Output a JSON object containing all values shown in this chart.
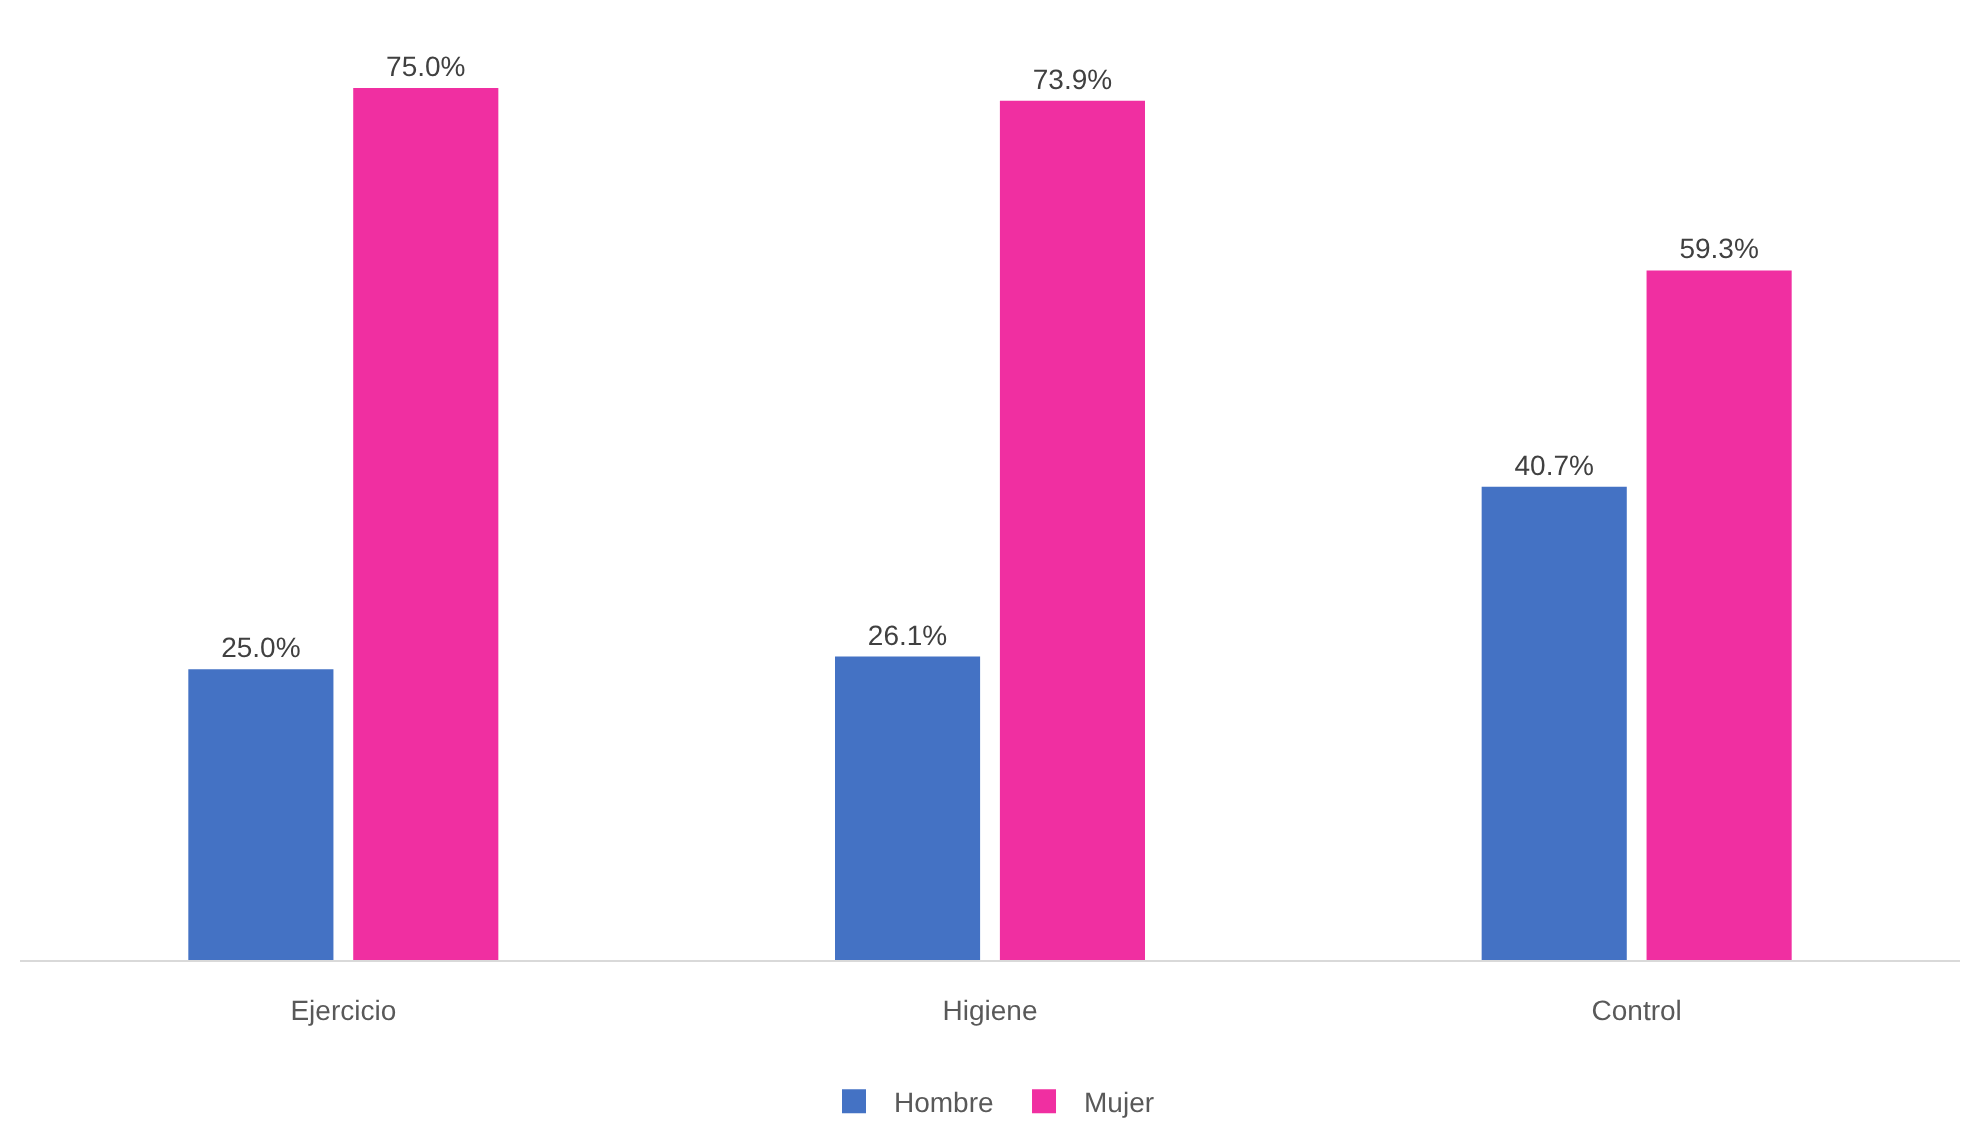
{
  "chart_data": {
    "type": "bar",
    "categories": [
      "Ejercicio",
      "Higiene",
      "Control"
    ],
    "series": [
      {
        "name": "Hombre",
        "color": "#4472c4",
        "values": [
          25.0,
          26.1,
          40.7
        ],
        "value_labels": [
          "25.0%",
          "26.1%",
          "40.7%"
        ]
      },
      {
        "name": "Mujer",
        "color": "#f02fa1",
        "values": [
          75.0,
          73.9,
          59.3
        ],
        "value_labels": [
          "75.0%",
          "73.9%",
          "59.3%"
        ]
      }
    ],
    "legend": "bottom"
  }
}
